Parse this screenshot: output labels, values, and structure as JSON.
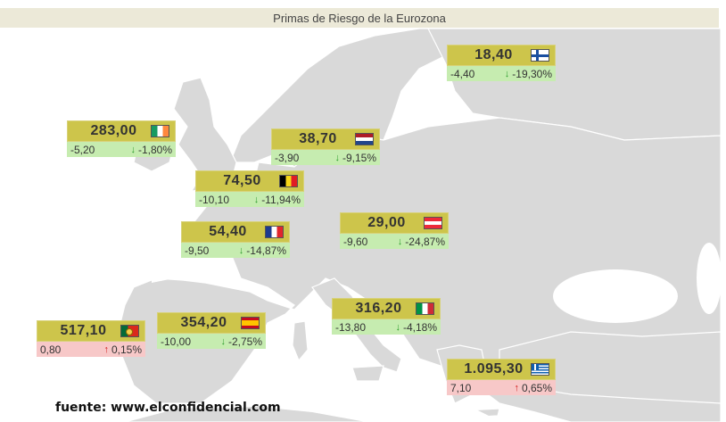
{
  "header": {
    "title": "Primas de Riesgo de la Eurozona"
  },
  "colors": {
    "down_bg": "#c6ecb0",
    "up_bg": "#f7c8c8",
    "value_bg": "#cdc54b",
    "land": "#d9d9d9"
  },
  "countries": [
    {
      "id": "finland",
      "value": "18,40",
      "change": "-4,40",
      "pct": "-19,30%",
      "dir": "down",
      "flag": "finland-flag-icon"
    },
    {
      "id": "ireland",
      "value": "283,00",
      "change": "-5,20",
      "pct": "-1,80%",
      "dir": "down",
      "flag": "ireland-flag-icon"
    },
    {
      "id": "netherlands",
      "value": "38,70",
      "change": "-3,90",
      "pct": "-9,15%",
      "dir": "down",
      "flag": "netherlands-flag-icon"
    },
    {
      "id": "belgium",
      "value": "74,50",
      "change": "-10,10",
      "pct": "-11,94%",
      "dir": "down",
      "flag": "belgium-flag-icon"
    },
    {
      "id": "austria",
      "value": "29,00",
      "change": "-9,60",
      "pct": "-24,87%",
      "dir": "down",
      "flag": "austria-flag-icon"
    },
    {
      "id": "france",
      "value": "54,40",
      "change": "-9,50",
      "pct": "-14,87%",
      "dir": "down",
      "flag": "france-flag-icon"
    },
    {
      "id": "portugal",
      "value": "517,10",
      "change": "0,80",
      "pct": "0,15%",
      "dir": "up",
      "flag": "portugal-flag-icon"
    },
    {
      "id": "spain",
      "value": "354,20",
      "change": "-10,00",
      "pct": "-2,75%",
      "dir": "down",
      "flag": "spain-flag-icon"
    },
    {
      "id": "italy",
      "value": "316,20",
      "change": "-13,80",
      "pct": "-4,18%",
      "dir": "down",
      "flag": "italy-flag-icon"
    },
    {
      "id": "greece",
      "value": "1.095,30",
      "change": "7,10",
      "pct": "0,65%",
      "dir": "up",
      "flag": "greece-flag-icon"
    }
  ],
  "source": "fuente: www.elconfidencial.com"
}
